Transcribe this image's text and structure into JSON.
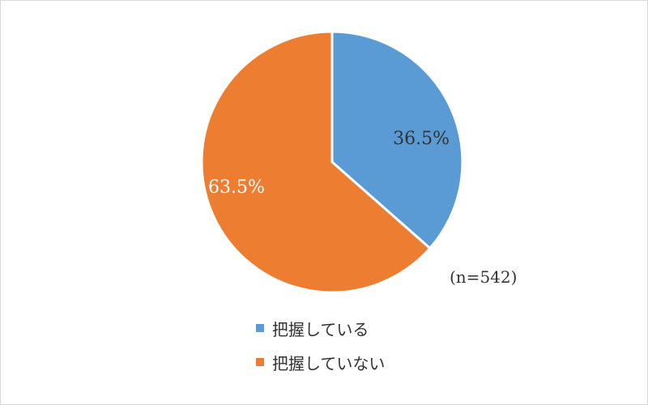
{
  "chart_data": {
    "type": "pie",
    "title": "",
    "slices": [
      {
        "label": "把握している",
        "value": 36.5,
        "display": "36.5%",
        "color": "#5b9bd5",
        "label_color": "#333333"
      },
      {
        "label": "把握していない",
        "value": 63.5,
        "display": "63.5%",
        "color": "#ed7d31",
        "label_color": "#ffffff"
      }
    ],
    "start_angle_deg": 0,
    "direction": "clockwise",
    "legend_position": "bottom",
    "annotation": "(n=542)"
  }
}
